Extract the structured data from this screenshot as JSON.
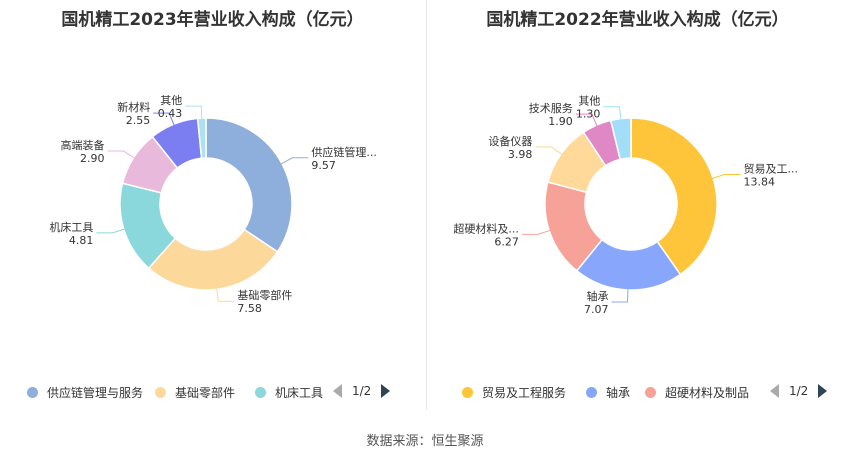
{
  "chart_data": [
    {
      "type": "pie",
      "title": "国机精工2023年营业收入构成（亿元）",
      "categories": [
        "供应链管理与服务",
        "基础零部件",
        "机床工具",
        "高端装备",
        "新材料",
        "其他"
      ],
      "labels": [
        "供应链管理...",
        "基础零部件",
        "机床工具",
        "高端装备",
        "新材料",
        "其他"
      ],
      "values": [
        9.57,
        7.58,
        4.81,
        2.9,
        2.55,
        0.43
      ],
      "value_labels": [
        "9.57",
        "7.58",
        "4.81",
        "2.90",
        "2.55",
        "0.43"
      ],
      "colors": [
        "#8eaedb",
        "#fdd89b",
        "#8bd8dc",
        "#e9b9dc",
        "#7b7ef1",
        "#aee0f4"
      ],
      "legend": {
        "items": [
          "供应链管理与服务",
          "基础零部件",
          "机床工具"
        ],
        "placement": "bottom",
        "page": "1/2"
      }
    },
    {
      "type": "pie",
      "title": "国机精工2022年营业收入构成（亿元）",
      "categories": [
        "贸易及工程服务",
        "轴承",
        "超硬材料及制品",
        "设备仪器",
        "技术服务",
        "其他"
      ],
      "labels": [
        "贸易及工...",
        "轴承",
        "超硬材料及...",
        "设备仪器",
        "技术服务",
        "其他"
      ],
      "values": [
        13.84,
        7.07,
        6.27,
        3.98,
        1.9,
        1.3
      ],
      "value_labels": [
        "13.84",
        "7.07",
        "6.27",
        "3.98",
        "1.90",
        "1.30"
      ],
      "colors": [
        "#fec53b",
        "#88a6fb",
        "#f7a298",
        "#fed99a",
        "#e088c5",
        "#a3def9"
      ],
      "legend": {
        "items": [
          "贸易及工程服务",
          "轴承",
          "超硬材料及制品"
        ],
        "placement": "bottom",
        "page": "1/2"
      }
    }
  ],
  "source": "数据来源：恒生聚源"
}
